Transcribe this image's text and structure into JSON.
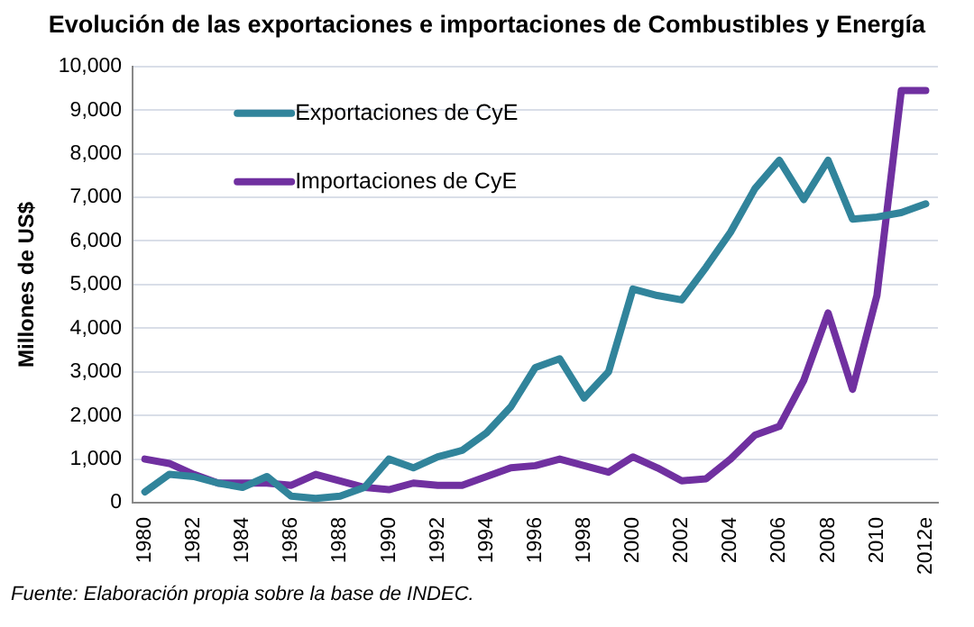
{
  "chart_data": {
    "type": "line",
    "title": "Evolución de las exportaciones  e importaciones de Combustibles y Energía",
    "ylabel": "Millones de US$",
    "categories": [
      "1980",
      null,
      "1982",
      null,
      "1984",
      null,
      "1986",
      null,
      "1988",
      null,
      "1990",
      null,
      "1992",
      null,
      "1994",
      null,
      "1996",
      null,
      "1998",
      null,
      "2000",
      null,
      "2002",
      null,
      "2004",
      null,
      "2006",
      null,
      "2008",
      null,
      "2010",
      null,
      "2012e"
    ],
    "series": [
      {
        "name": "Exportaciones de CyE",
        "color": "#31849b",
        "values": [
          250,
          650,
          600,
          450,
          350,
          600,
          150,
          100,
          150,
          350,
          1000,
          800,
          1050,
          1200,
          1600,
          2200,
          3100,
          3300,
          2400,
          3000,
          4900,
          4750,
          4650,
          5400,
          6200,
          7200,
          7850,
          6950,
          7850,
          6500,
          6550,
          6650,
          6850
        ]
      },
      {
        "name": "Importaciones de CyE",
        "color": "#7030a0",
        "values": [
          1000,
          900,
          650,
          450,
          450,
          450,
          400,
          650,
          500,
          350,
          300,
          450,
          400,
          400,
          600,
          800,
          850,
          1000,
          850,
          700,
          1050,
          800,
          500,
          550,
          1000,
          1550,
          1750,
          2800,
          4350,
          2600,
          4750,
          9450,
          9450
        ]
      }
    ],
    "ylim": [
      0,
      10000
    ],
    "yticks": [
      {
        "value": 0,
        "label": "0"
      },
      {
        "value": 1000,
        "label": "1,000"
      },
      {
        "value": 2000,
        "label": "2,000"
      },
      {
        "value": 3000,
        "label": "3,000"
      },
      {
        "value": 4000,
        "label": "4,000"
      },
      {
        "value": 5000,
        "label": "5,000"
      },
      {
        "value": 6000,
        "label": "6,000"
      },
      {
        "value": 7000,
        "label": "7,000"
      },
      {
        "value": 8000,
        "label": "8,000"
      },
      {
        "value": 9000,
        "label": "9,000"
      },
      {
        "value": 10000,
        "label": "10,000"
      }
    ],
    "grid": "y",
    "legend": "top left",
    "marker": "none",
    "line_style": "solid",
    "annotations": [
      "Fuente: Elaboración propia sobre la base de INDEC."
    ]
  }
}
